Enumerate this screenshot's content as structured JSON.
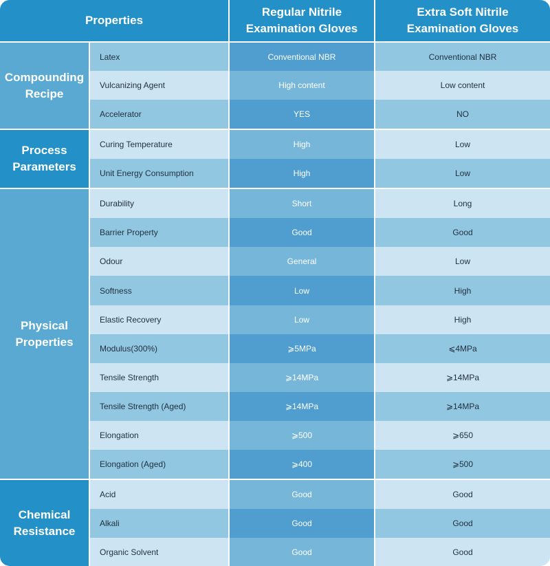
{
  "header": {
    "properties": "Properties",
    "regular_line1": "Regular Nitrile",
    "regular_line2": "Examination Gloves",
    "extra_line1": "Extra Soft Nitrile",
    "extra_line2": "Examination Gloves"
  },
  "groups": [
    {
      "label_line1": "Compounding",
      "label_line2": "Recipe",
      "rows": [
        {
          "property": "Latex",
          "regular": "Conventional NBR",
          "extra_soft": "Conventional NBR"
        },
        {
          "property": "Vulcanizing Agent",
          "regular": "High content",
          "extra_soft": "Low content"
        },
        {
          "property": "Accelerator",
          "regular": "YES",
          "extra_soft": "NO"
        }
      ]
    },
    {
      "label_line1": "Process",
      "label_line2": "Parameters",
      "rows": [
        {
          "property": "Curing Temperature",
          "regular": "High",
          "extra_soft": "Low"
        },
        {
          "property": "Unit Energy Consumption",
          "regular": "High",
          "extra_soft": "Low"
        }
      ]
    },
    {
      "label_line1": "Physical",
      "label_line2": "Properties",
      "rows": [
        {
          "property": "Durability",
          "regular": "Short",
          "extra_soft": "Long"
        },
        {
          "property": "Barrier Property",
          "regular": "Good",
          "extra_soft": "Good"
        },
        {
          "property": "Odour",
          "regular": "General",
          "extra_soft": "Low"
        },
        {
          "property": "Softness",
          "regular": "Low",
          "extra_soft": "High"
        },
        {
          "property": "Elastic Recovery",
          "regular": "Low",
          "extra_soft": "High"
        },
        {
          "property": "Modulus(300%)",
          "regular": "⩾5MPa",
          "extra_soft": "⩽4MPa"
        },
        {
          "property": "Tensile Strength",
          "regular": "⩾14MPa",
          "extra_soft": "⩾14MPa"
        },
        {
          "property": "Tensile Strength (Aged)",
          "regular": "⩾14MPa",
          "extra_soft": "⩾14MPa"
        },
        {
          "property": "Elongation",
          "regular": "⩾500",
          "extra_soft": "⩾650"
        },
        {
          "property": "Elongation (Aged)",
          "regular": "⩾400",
          "extra_soft": "⩾500"
        }
      ]
    },
    {
      "label_line1": "Chemical",
      "label_line2": "Resistance",
      "rows": [
        {
          "property": "Acid",
          "regular": "Good",
          "extra_soft": "Good"
        },
        {
          "property": "Alkali",
          "regular": "Good",
          "extra_soft": "Good"
        },
        {
          "property": "Organic Solvent",
          "regular": "Good",
          "extra_soft": "Good"
        }
      ]
    }
  ]
}
